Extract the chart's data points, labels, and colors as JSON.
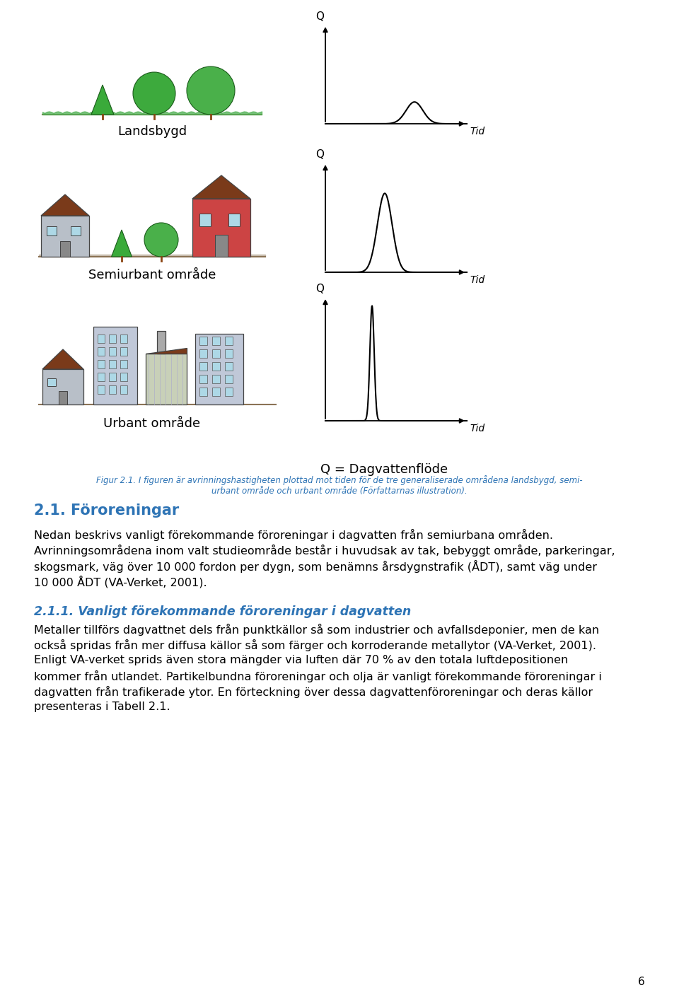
{
  "background_color": "#ffffff",
  "figure_caption_line1": "Figur 2.1. I figuren är avrinningshastigheten plottad mot tiden för de tre generaliserade områdena landsbygd, semi-",
  "figure_caption_line2": "urbant område och urbant område (Författarnas illustration).",
  "section_title": "2.1. Föroreningar",
  "section_subtitle": "2.1.1. Vanligt förekommande föroreningar i dagvatten",
  "heading_color": "#2E74B5",
  "subheading_color": "#2E74B5",
  "caption_color": "#2E74B5",
  "body_text_color": "#000000",
  "labels": [
    "Landsbygd",
    "Semiurbant område",
    "Urbant område"
  ],
  "q_dagvatten_label": "Q = Dagvattenflöde",
  "page_number": "6",
  "body_text_1": "Nedan beskrivs vanligt förekommande föroreningar i dagvatten från semiurbana områden.",
  "body_text_2_lines": [
    "Avrinningsområdena inom valt studieområde består i huvudsak av tak, bebyggt område, parkeringar,",
    "skogsmark, väg över 10 000 fordon per dygn, som benämns årsdygnstrafik (ÅDT), samt väg under",
    "10 000 ÅDT (VA-Verket, 2001)."
  ],
  "body_text_3_lines": [
    "Metaller tillförs dagvattnet dels från punktkällor så som industrier och avfallsdeponier, men de kan",
    "också spridas från mer diffusa källor så som färger och korroderande metallytor (VA-Verket, 2001).",
    "Enligt VA-verket sprids även stora mängder via luften där 70 % av den totala luftdepositionen",
    "kommer från utlandet. Partikelbundna föroreningar och olja är vanligt förekommande föroreningar i",
    "dagvatten från trafikerade ytor. En förteckning över dessa dagvattenföroreningar och deras källor",
    "presenteras i Tabell 2.1."
  ],
  "graph_line_color": "#000000",
  "illus_ground_color": "#8B7355",
  "illus_grass_color": "#4CAF50",
  "illus_tree_col1": "#3aaa3a",
  "illus_tree_col2": "#4ab04a",
  "illus_roof_color": "#7a3a1a",
  "illus_wall_gray": "#b8bfc8",
  "illus_wall_red": "#cc4444",
  "illus_window_color": "#add8e6",
  "illus_building_color": "#c0c8d8"
}
